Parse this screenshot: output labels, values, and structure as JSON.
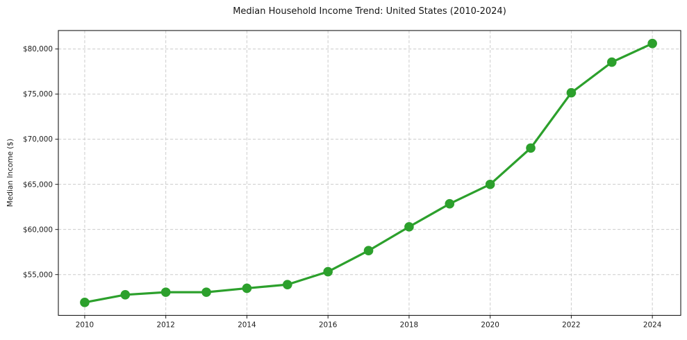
{
  "chart_data": {
    "type": "line",
    "title": "Median Household Income Trend: United States (2010-2024)",
    "xlabel": "",
    "ylabel": "Median Income ($)",
    "x": [
      2010,
      2011,
      2012,
      2013,
      2014,
      2015,
      2016,
      2017,
      2018,
      2019,
      2020,
      2021,
      2022,
      2023,
      2024
    ],
    "series": [
      {
        "values": [
          51914,
          52762,
          53046,
          53046,
          53482,
          53889,
          55322,
          57652,
          60293,
          62843,
          64994,
          69021,
          75149,
          78538,
          80610
        ],
        "marker": "circle"
      }
    ],
    "x_ticks": [
      2010,
      2012,
      2014,
      2016,
      2018,
      2020,
      2022,
      2024
    ],
    "x_tick_labels": [
      "2010",
      "2012",
      "2014",
      "2016",
      "2018",
      "2020",
      "2022",
      "2024"
    ],
    "y_ticks": [
      55000,
      60000,
      65000,
      70000,
      75000,
      80000
    ],
    "y_tick_labels": [
      "$55,000",
      "$60,000",
      "$65,000",
      "$70,000",
      "$75,000",
      "$80,000"
    ],
    "xlim": [
      2009.35,
      2024.7
    ],
    "ylim": [
      50479,
      82045
    ],
    "grid": true,
    "grid_style": "dashed",
    "legend": false,
    "colors": {
      "line": "#2ca02c",
      "marker": "#2ca02c",
      "grid": "#cccccc",
      "spine": "#1a1a1a",
      "text": "#1a1a1a",
      "background": "#ffffff"
    }
  }
}
